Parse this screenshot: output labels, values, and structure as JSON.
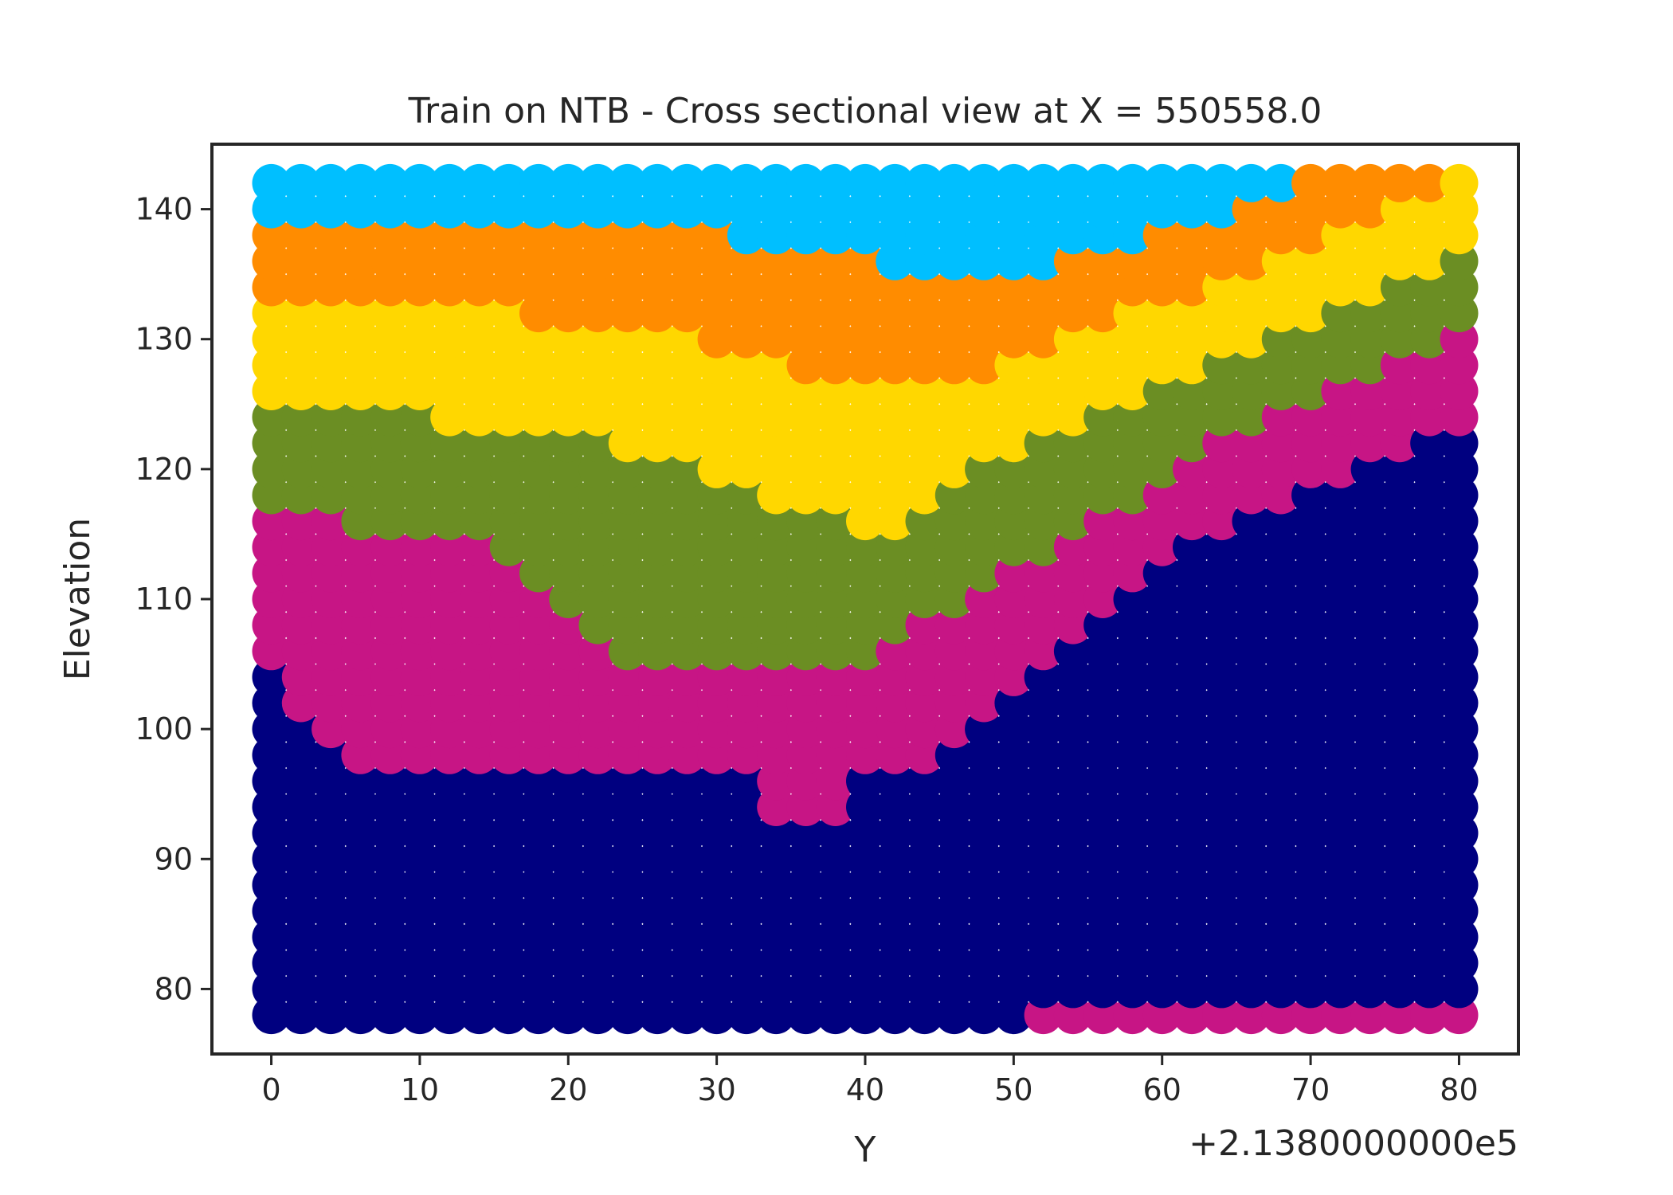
{
  "chart_data": {
    "type": "scatter",
    "title": "Train on NTB - Cross sectional view at X = 550558.0",
    "xlabel": "Y",
    "ylabel": "Elevation",
    "x_offset_label": "+2.1380000000e5",
    "xlim": [
      -4,
      84
    ],
    "ylim": [
      75,
      145
    ],
    "xticks": [
      0,
      10,
      20,
      30,
      40,
      50,
      60,
      70,
      80
    ],
    "yticks": [
      80,
      90,
      100,
      110,
      120,
      130,
      140
    ],
    "grid": false,
    "x_step": 2,
    "y_step": 2,
    "x_range": [
      0,
      80
    ],
    "y_range": [
      78,
      142
    ],
    "colors": {
      "navy": "#000080",
      "magenta": "#c71585",
      "olive": "#6b8e23",
      "gold": "#ffd700",
      "orange": "#ff8c00",
      "skyblue": "#00bfff"
    },
    "layer_order_bottom_to_top": [
      "navy",
      "magenta",
      "olive",
      "gold",
      "orange",
      "skyblue"
    ],
    "layer_top_elevation": {
      "x": [
        0,
        2,
        4,
        6,
        8,
        10,
        12,
        14,
        16,
        18,
        20,
        22,
        24,
        26,
        28,
        30,
        32,
        34,
        36,
        38,
        40,
        42,
        44,
        46,
        48,
        50,
        52,
        54,
        56,
        58,
        60,
        62,
        64,
        66,
        68,
        70,
        72,
        74,
        76,
        78,
        80
      ],
      "navy": [
        104,
        100,
        98,
        96,
        96,
        96,
        96,
        96,
        96,
        96,
        96,
        96,
        96,
        96,
        96,
        96,
        96,
        92,
        92,
        92,
        96,
        96,
        96,
        98,
        100,
        102,
        104,
        106,
        108,
        110,
        112,
        114,
        114,
        116,
        116,
        118,
        118,
        120,
        120,
        122,
        122
      ],
      "magenta": [
        116,
        116,
        116,
        114,
        114,
        114,
        114,
        114,
        112,
        110,
        108,
        106,
        104,
        104,
        104,
        104,
        104,
        104,
        104,
        104,
        104,
        106,
        108,
        108,
        110,
        112,
        112,
        114,
        116,
        116,
        118,
        120,
        122,
        122,
        124,
        124,
        126,
        126,
        128,
        128,
        130
      ],
      "olive": [
        124,
        124,
        124,
        124,
        124,
        124,
        122,
        122,
        122,
        122,
        122,
        122,
        120,
        120,
        120,
        118,
        118,
        116,
        116,
        116,
        114,
        114,
        116,
        118,
        120,
        120,
        122,
        122,
        124,
        124,
        126,
        126,
        128,
        128,
        130,
        130,
        132,
        132,
        134,
        134,
        136
      ],
      "gold": [
        132,
        132,
        132,
        132,
        132,
        132,
        132,
        132,
        132,
        130,
        130,
        130,
        130,
        130,
        130,
        128,
        128,
        128,
        126,
        126,
        126,
        126,
        126,
        126,
        126,
        128,
        128,
        130,
        130,
        132,
        132,
        132,
        134,
        134,
        136,
        136,
        138,
        138,
        140,
        140,
        142
      ],
      "orange": [
        138,
        138,
        138,
        138,
        138,
        138,
        138,
        138,
        138,
        138,
        138,
        138,
        138,
        138,
        138,
        138,
        136,
        136,
        136,
        136,
        136,
        134,
        134,
        134,
        134,
        134,
        134,
        136,
        136,
        136,
        138,
        138,
        138,
        140,
        140,
        142,
        142,
        142,
        142,
        142,
        140
      ],
      "skyblue": [
        142,
        142,
        142,
        142,
        142,
        142,
        142,
        142,
        142,
        142,
        142,
        142,
        142,
        142,
        142,
        142,
        142,
        142,
        142,
        142,
        142,
        142,
        142,
        142,
        142,
        142,
        142,
        142,
        142,
        142,
        142,
        142,
        142,
        142,
        142,
        0,
        0,
        0,
        0,
        0,
        0
      ]
    },
    "bottom_row_magenta_x": [
      52,
      54,
      56,
      58,
      60,
      62,
      64,
      66,
      68,
      70,
      72,
      74,
      76,
      78,
      80
    ]
  }
}
